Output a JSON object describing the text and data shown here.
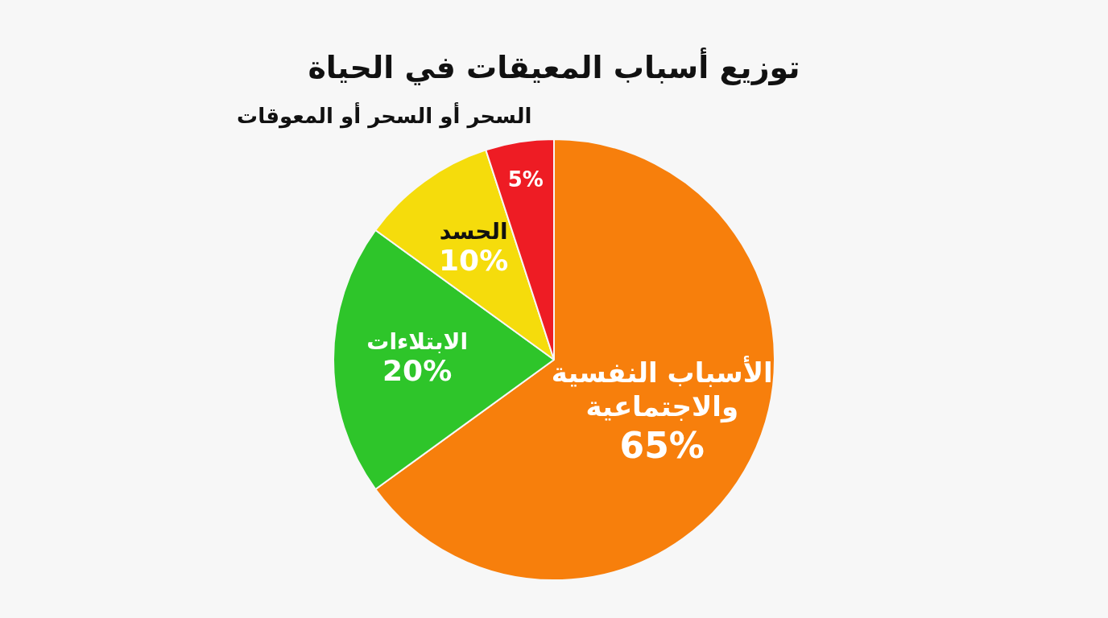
{
  "chart_data": {
    "type": "pie",
    "title": "توزيع أسباب المعيقات في الحياة",
    "categories": [
      "الأسباب النفسية والاجتماعية",
      "الابتلاءات",
      "الحسد",
      "السحر أو السحر أو المعوقات"
    ],
    "values": [
      65,
      20,
      10,
      5
    ],
    "value_labels": [
      "65%",
      "20%",
      "10%",
      "5%"
    ],
    "colors": [
      "#f77f0c",
      "#2ec52a",
      "#f5dc0c",
      "#ee1c24"
    ],
    "legend": false
  }
}
